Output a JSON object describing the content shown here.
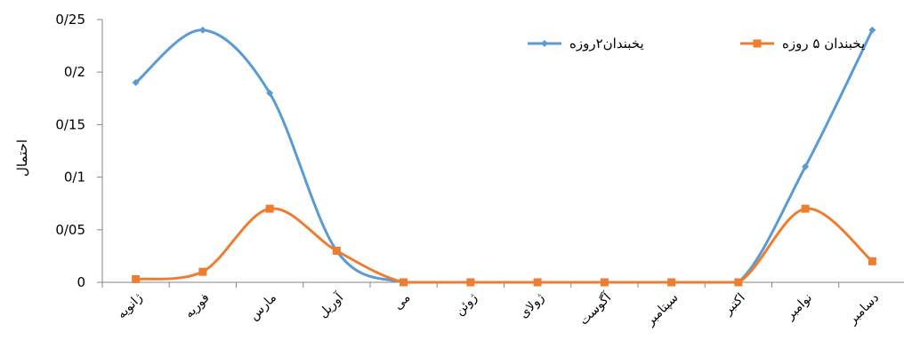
{
  "chart_data": {
    "type": "line",
    "title": "",
    "xlabel": "",
    "ylabel": "احتمال",
    "ylim": [
      0,
      0.25
    ],
    "yticks": [
      "0",
      "0/05",
      "0/1",
      "0/15",
      "0/2",
      "0/25"
    ],
    "ytick_values": [
      0,
      0.05,
      0.1,
      0.15,
      0.2,
      0.25
    ],
    "grid": false,
    "legend_position": "top-right",
    "categories": [
      "ژانویه",
      "فوریه",
      "مارس",
      "آوریل",
      "می",
      "ژوئن",
      "ژولای",
      "آگوست",
      "سپتامبر",
      "اکتبر",
      "نوامبر",
      "دسامبر"
    ],
    "series": [
      {
        "name": "یخبندان۲روزه",
        "color": "#5b9bd5",
        "marker": "diamond",
        "values": [
          0.19,
          0.24,
          0.18,
          0.03,
          0,
          0,
          0,
          0,
          0,
          0,
          0.11,
          0.24
        ]
      },
      {
        "name": "یخبندان ۵ روزه",
        "color": "#ed7d31",
        "marker": "square",
        "values": [
          0.003,
          0.01,
          0.07,
          0.03,
          0,
          0,
          0,
          0,
          0,
          0,
          0.07,
          0.02
        ]
      }
    ]
  }
}
